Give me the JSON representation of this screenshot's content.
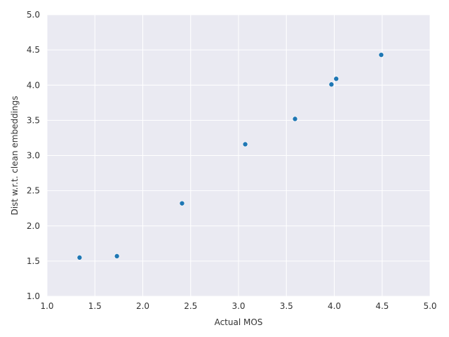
{
  "chart_data": {
    "type": "scatter",
    "title": "",
    "xlabel": "Actual MOS",
    "ylabel": "Dist w.r.t. clean embeddings",
    "xlim": [
      1.0,
      5.0
    ],
    "ylim": [
      1.0,
      5.0
    ],
    "xticks": [
      "1.0",
      "1.5",
      "2.0",
      "2.5",
      "3.0",
      "3.5",
      "4.0",
      "4.5",
      "5.0"
    ],
    "yticks": [
      "1.0",
      "1.5",
      "2.0",
      "2.5",
      "3.0",
      "3.5",
      "4.0",
      "4.5",
      "5.0"
    ],
    "grid": true,
    "legend": "none",
    "background_color": "#eaeaf2",
    "grid_color": "#ffffff",
    "point_color": "#1f77b4",
    "points": [
      {
        "x": 1.34,
        "y": 1.55
      },
      {
        "x": 1.73,
        "y": 1.57
      },
      {
        "x": 2.41,
        "y": 2.32
      },
      {
        "x": 3.07,
        "y": 3.16
      },
      {
        "x": 3.59,
        "y": 3.52
      },
      {
        "x": 3.97,
        "y": 4.01
      },
      {
        "x": 4.02,
        "y": 4.09
      },
      {
        "x": 4.49,
        "y": 4.43
      }
    ]
  }
}
